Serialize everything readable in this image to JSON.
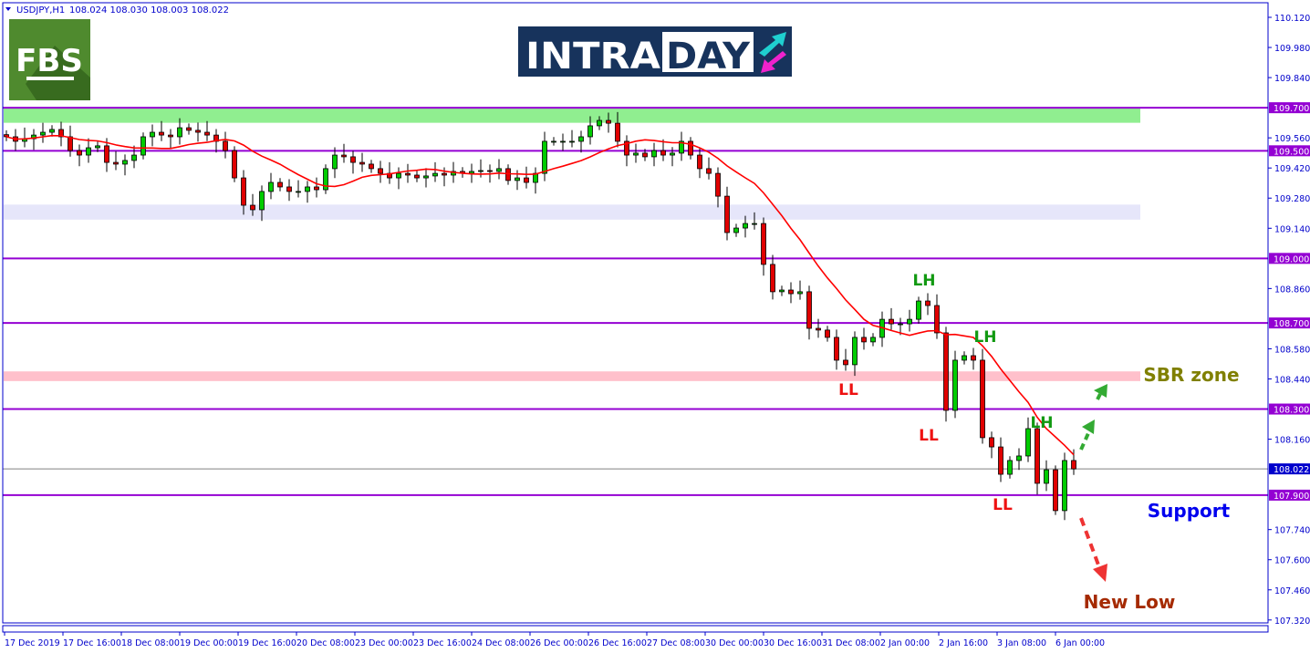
{
  "header": {
    "symbol": "USDJPY,H1",
    "ohlc": "108.024 108.030 108.003 108.022"
  },
  "logos": {
    "fbs": "FBS",
    "intraday_part1": "INTRA",
    "intraday_part2": "DAY"
  },
  "colors": {
    "frame": "#0000cc",
    "level_line": "#9400d3",
    "bull_candle": "#00cc00",
    "bear_candle": "#e00000",
    "moving_average": "#ff0000",
    "current_price": "#0000cc",
    "resistance_zone": "#90ee90",
    "mid_zone": "#e6e6fa",
    "sbr_zone": "#ffc0cb"
  },
  "chart_data": {
    "type": "candlestick",
    "timeframe": "H1",
    "ylim": [
      107.32,
      110.12
    ],
    "y_ticks": [
      "110.120",
      "109.980",
      "109.840",
      "109.560",
      "109.420",
      "109.280",
      "109.140",
      "108.860",
      "108.580",
      "108.440",
      "108.160",
      "107.740",
      "107.600",
      "107.460",
      "107.320"
    ],
    "x_ticks": [
      "17 Dec 2019",
      "17 Dec 16:00",
      "18 Dec 08:00",
      "19 Dec 00:00",
      "19 Dec 16:00",
      "20 Dec 08:00",
      "23 Dec 00:00",
      "23 Dec 16:00",
      "24 Dec 08:00",
      "26 Dec 00:00",
      "26 Dec 16:00",
      "27 Dec 08:00",
      "30 Dec 00:00",
      "30 Dec 16:00",
      "31 Dec 08:00",
      "2 Jan 00:00",
      "2 Jan 16:00",
      "3 Jan 08:00",
      "6 Jan 00:00"
    ],
    "closes": [
      109.565,
      109.544,
      109.556,
      109.573,
      109.586,
      109.599,
      109.565,
      109.501,
      109.48,
      109.514,
      109.523,
      109.446,
      109.438,
      109.455,
      109.48,
      109.565,
      109.586,
      109.573,
      109.565,
      109.607,
      109.595,
      109.586,
      109.573,
      109.544,
      109.501,
      109.374,
      109.247,
      109.226,
      109.311,
      109.353,
      109.332,
      109.311,
      109.311,
      109.332,
      109.319,
      109.417,
      109.48,
      109.472,
      109.446,
      109.438,
      109.417,
      109.395,
      109.374,
      109.395,
      109.387,
      109.374,
      109.383,
      109.395,
      109.387,
      109.404,
      109.395,
      109.404,
      109.408,
      109.404,
      109.417,
      109.362,
      109.374,
      109.353,
      109.395,
      109.544,
      109.544,
      109.544,
      109.544,
      109.565,
      109.616,
      109.641,
      109.628,
      109.544,
      109.48,
      109.489,
      109.472,
      109.501,
      109.48,
      109.489,
      109.544,
      109.48,
      109.417,
      109.395,
      109.289,
      109.12,
      109.141,
      109.162,
      109.162,
      108.972,
      108.845,
      108.853,
      108.836,
      108.845,
      108.675,
      108.667,
      108.633,
      108.527,
      108.506,
      108.633,
      108.612,
      108.633,
      108.717,
      108.696,
      108.696,
      108.717,
      108.802,
      108.781,
      108.654,
      108.294,
      108.527,
      108.548,
      108.527,
      108.167,
      108.124,
      107.997,
      108.061,
      108.082,
      108.209,
      107.955,
      108.018,
      107.828,
      108.061,
      108.022
    ],
    "current_price": "108.022",
    "levels": [
      "109.700",
      "109.500",
      "109.000",
      "108.700",
      "108.300",
      "107.900"
    ],
    "zones": [
      {
        "from": 109.63,
        "to": 109.7,
        "color": "#90ee90"
      },
      {
        "from": 109.18,
        "to": 109.25,
        "color": "#e6e6fa"
      },
      {
        "from": 108.43,
        "to": 108.475,
        "color": "#ffc0cb"
      }
    ],
    "annotations": {
      "lh1": "LH",
      "lh2": "LH",
      "lh3": "LH",
      "ll1": "LL",
      "ll2": "LL",
      "ll3": "LL",
      "sbr": "SBR zone",
      "support": "Support",
      "new_low": "New Low"
    }
  }
}
